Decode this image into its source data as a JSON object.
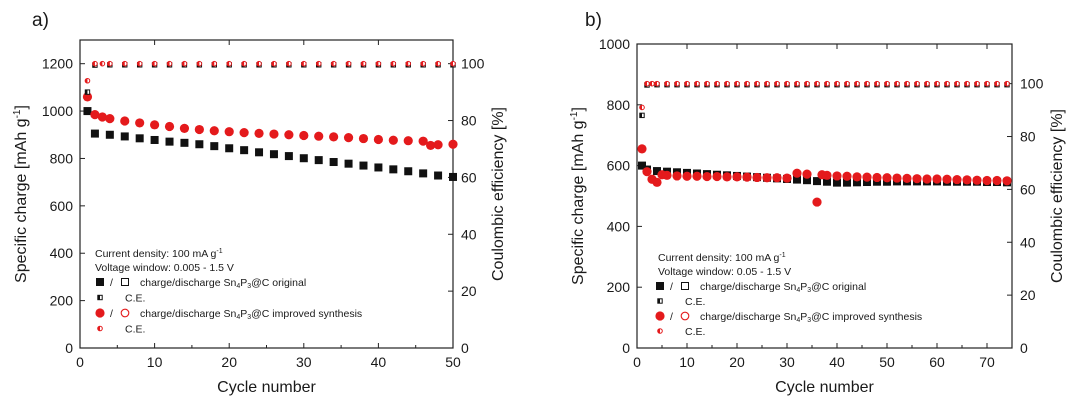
{
  "chart_data": [
    {
      "type": "scatter",
      "panel_label": "a)",
      "xlabel": "Cycle number",
      "ylabel_left": "Specific charge [mAh g",
      "ylabel_left_sup": "-1",
      "ylabel_left_end": "]",
      "ylabel_right": "Coulombic efficiency [%]",
      "xlim": [
        0,
        50
      ],
      "ylim_left": [
        0,
        1300
      ],
      "ylim_right": [
        0,
        108.33
      ],
      "x_ticks": [
        "0",
        "10",
        "20",
        "30",
        "40",
        "50"
      ],
      "y_left_ticks": [
        "0",
        "200",
        "400",
        "600",
        "800",
        "1000",
        "1200"
      ],
      "y_right_ticks": [
        "0",
        "20",
        "40",
        "60",
        "80",
        "100"
      ],
      "annotation_lines": [
        "Current density: 100 mA g",
        "Voltage window: 0.005 - 1.5 V"
      ],
      "annotation_sup": "-1",
      "legend": [
        {
          "marker": "square",
          "text_pre": "charge/discharge Sn",
          "sub1": "4",
          "mid": "P",
          "sub2": "3",
          "text_post": "@C original"
        },
        {
          "marker": "square-ce",
          "text_pre": "C.E."
        },
        {
          "marker": "circle",
          "text_pre": "charge/discharge Sn",
          "sub1": "4",
          "mid": "P",
          "sub2": "3",
          "text_post": "@C improved synthesis"
        },
        {
          "marker": "circle-ce",
          "text_pre": "C.E."
        }
      ],
      "series": [
        {
          "name": "charge/discharge Sn4P3@C original",
          "marker": "square",
          "color": "#111111",
          "axis": "left",
          "x": [
            1,
            2,
            4,
            6,
            8,
            10,
            12,
            14,
            16,
            18,
            20,
            22,
            24,
            26,
            28,
            30,
            32,
            34,
            36,
            38,
            40,
            42,
            44,
            46,
            48,
            50
          ],
          "y": [
            1000,
            905,
            900,
            893,
            885,
            878,
            871,
            866,
            860,
            852,
            843,
            835,
            826,
            818,
            810,
            801,
            793,
            785,
            778,
            770,
            762,
            754,
            746,
            737,
            728,
            722
          ]
        },
        {
          "name": "charge/discharge Sn4P3@C improved synthesis",
          "marker": "circle",
          "color": "#e41a1c",
          "axis": "left",
          "x": [
            1,
            2,
            3,
            4,
            6,
            8,
            10,
            12,
            14,
            16,
            18,
            20,
            22,
            24,
            26,
            28,
            30,
            32,
            34,
            36,
            38,
            40,
            42,
            44,
            46,
            47,
            48,
            50
          ],
          "y": [
            1060,
            985,
            975,
            968,
            958,
            950,
            942,
            935,
            927,
            922,
            917,
            913,
            909,
            906,
            903,
            900,
            897,
            894,
            891,
            888,
            884,
            880,
            877,
            875,
            873,
            855,
            858,
            860
          ]
        },
        {
          "name": "C.E. original",
          "marker": "square-ce",
          "color": "#111111",
          "axis": "right",
          "x": [
            1,
            2,
            4,
            6,
            8,
            10,
            12,
            14,
            16,
            18,
            20,
            22,
            24,
            26,
            28,
            30,
            32,
            34,
            36,
            38,
            40,
            42,
            44,
            46,
            48,
            50
          ],
          "y": [
            90,
            99.5,
            99.6,
            99.6,
            99.6,
            99.6,
            99.6,
            99.6,
            99.6,
            99.6,
            99.6,
            99.6,
            99.6,
            99.6,
            99.6,
            99.6,
            99.6,
            99.6,
            99.6,
            99.6,
            99.6,
            99.6,
            99.6,
            99.6,
            99.6,
            99.6
          ]
        },
        {
          "name": "C.E. improved",
          "marker": "circle-ce",
          "color": "#e41a1c",
          "axis": "right",
          "x": [
            1,
            2,
            3,
            4,
            6,
            8,
            10,
            12,
            14,
            16,
            18,
            20,
            22,
            24,
            26,
            28,
            30,
            32,
            34,
            36,
            38,
            40,
            42,
            44,
            46,
            48,
            50
          ],
          "y": [
            94,
            100,
            100,
            100,
            100,
            100,
            100,
            100,
            100,
            100,
            100,
            100,
            100,
            100,
            100,
            100,
            100,
            100,
            100,
            100,
            100,
            100,
            100,
            100,
            100,
            100,
            100
          ]
        }
      ]
    },
    {
      "type": "scatter",
      "panel_label": "b)",
      "xlabel": "Cycle number",
      "ylabel_left": "Specific charge [mAh g",
      "ylabel_left_sup": "-1",
      "ylabel_left_end": "]",
      "ylabel_right": "Coulombic efficiency [%]",
      "xlim": [
        0,
        75
      ],
      "ylim_left": [
        0,
        1000
      ],
      "ylim_right": [
        0,
        115
      ],
      "x_ticks": [
        "0",
        "10",
        "20",
        "30",
        "40",
        "50",
        "60",
        "70"
      ],
      "y_left_ticks": [
        "0",
        "200",
        "400",
        "600",
        "800",
        "1000"
      ],
      "y_right_ticks": [
        "0",
        "20",
        "40",
        "60",
        "80",
        "100"
      ],
      "annotation_lines": [
        "Current density: 100 mA g",
        "Voltage window: 0.05 - 1.5 V"
      ],
      "annotation_sup": "-1",
      "legend": [
        {
          "marker": "square",
          "text_pre": "charge/discharge Sn",
          "sub1": "4",
          "mid": "P",
          "sub2": "3",
          "text_post": "@C original"
        },
        {
          "marker": "square-ce",
          "text_pre": "C.E."
        },
        {
          "marker": "circle",
          "text_pre": "charge/discharge Sn",
          "sub1": "4",
          "mid": "P",
          "sub2": "3",
          "text_post": "@C improved synthesis"
        },
        {
          "marker": "circle-ce",
          "text_pre": "C.E."
        }
      ],
      "series": [
        {
          "name": "charge/discharge Sn4P3@C original",
          "marker": "square",
          "color": "#111111",
          "axis": "left",
          "x": [
            1,
            2,
            4,
            6,
            8,
            10,
            12,
            14,
            16,
            18,
            20,
            22,
            24,
            26,
            28,
            30,
            32,
            34,
            36,
            38,
            40,
            42,
            44,
            46,
            48,
            50,
            52,
            54,
            56,
            58,
            60,
            62,
            64,
            66,
            68,
            70,
            72,
            74
          ],
          "y": [
            600,
            587,
            582,
            580,
            578,
            576,
            574,
            572,
            570,
            568,
            566,
            564,
            562,
            560,
            558,
            556,
            554,
            552,
            549,
            547,
            544,
            544,
            545,
            546,
            547,
            547,
            548,
            548,
            548,
            548,
            548,
            547,
            547,
            547,
            547,
            546,
            546,
            545
          ]
        },
        {
          "name": "charge/discharge Sn4P3@C improved synthesis",
          "marker": "circle",
          "color": "#e41a1c",
          "axis": "left",
          "x": [
            1,
            2,
            3,
            4,
            5,
            6,
            8,
            10,
            12,
            14,
            16,
            18,
            20,
            22,
            24,
            26,
            28,
            30,
            32,
            34,
            36,
            37,
            38,
            40,
            42,
            44,
            46,
            48,
            50,
            52,
            54,
            56,
            58,
            60,
            62,
            64,
            66,
            68,
            70,
            72,
            74
          ],
          "y": [
            655,
            580,
            555,
            545,
            570,
            568,
            566,
            565,
            565,
            564,
            564,
            563,
            563,
            562,
            561,
            560,
            560,
            559,
            575,
            572,
            480,
            570,
            568,
            566,
            565,
            563,
            562,
            561,
            560,
            559,
            558,
            557,
            556,
            556,
            555,
            554,
            553,
            552,
            551,
            551,
            550
          ]
        },
        {
          "name": "C.E. original",
          "marker": "square-ce",
          "color": "#111111",
          "axis": "right",
          "x": [
            1,
            2,
            4,
            6,
            8,
            10,
            12,
            14,
            16,
            18,
            20,
            22,
            24,
            26,
            28,
            30,
            32,
            34,
            36,
            38,
            40,
            42,
            44,
            46,
            48,
            50,
            52,
            54,
            56,
            58,
            60,
            62,
            64,
            66,
            68,
            70,
            72,
            74
          ],
          "y": [
            88,
            99.5,
            99.6,
            99.6,
            99.6,
            99.6,
            99.6,
            99.6,
            99.6,
            99.6,
            99.6,
            99.6,
            99.6,
            99.6,
            99.6,
            99.6,
            99.6,
            99.6,
            99.6,
            99.6,
            99.6,
            99.6,
            99.6,
            99.6,
            99.6,
            99.6,
            99.6,
            99.6,
            99.6,
            99.6,
            99.6,
            99.6,
            99.6,
            99.6,
            99.6,
            99.6,
            99.6,
            99.6
          ]
        },
        {
          "name": "C.E. improved",
          "marker": "circle-ce",
          "color": "#e41a1c",
          "axis": "right",
          "x": [
            1,
            2,
            3,
            4,
            6,
            8,
            10,
            12,
            14,
            16,
            18,
            20,
            22,
            24,
            26,
            28,
            30,
            32,
            34,
            36,
            38,
            40,
            42,
            44,
            46,
            48,
            50,
            52,
            54,
            56,
            58,
            60,
            62,
            64,
            66,
            68,
            70,
            72,
            74
          ],
          "y": [
            91,
            100,
            100,
            100,
            100,
            100,
            100,
            100,
            100,
            100,
            100,
            100,
            100,
            100,
            100,
            100,
            100,
            100,
            100,
            100,
            100,
            100,
            100,
            100,
            100,
            100,
            100,
            100,
            100,
            100,
            100,
            100,
            100,
            100,
            100,
            100,
            100,
            100,
            100
          ]
        }
      ]
    }
  ]
}
